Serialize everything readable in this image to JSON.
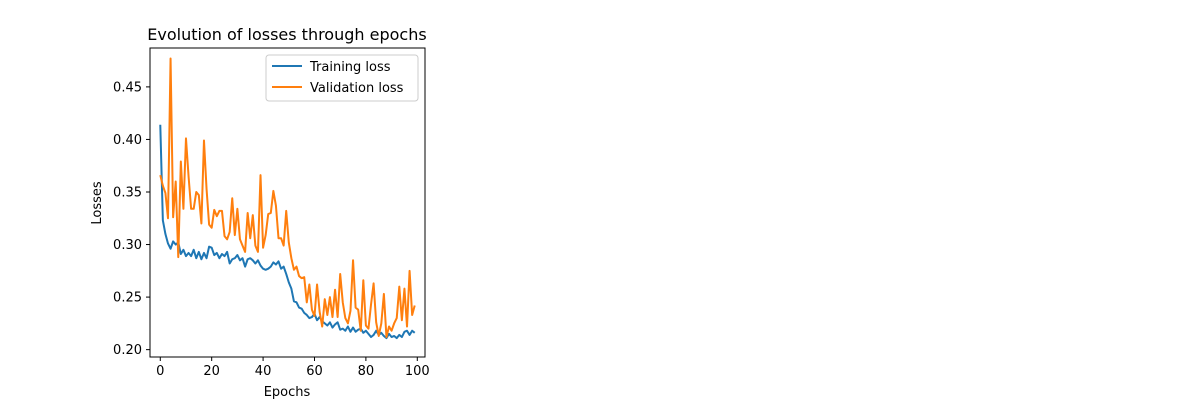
{
  "chart_data": {
    "type": "line",
    "title": "Evolution of losses through epochs",
    "xlabel": "Epochs",
    "ylabel": "Losses",
    "xlim": [
      -4,
      103
    ],
    "ylim": [
      0.193,
      0.487
    ],
    "xticks": [
      0,
      20,
      40,
      60,
      80,
      100
    ],
    "yticks": [
      0.2,
      0.25,
      0.3,
      0.35,
      0.4,
      0.45
    ],
    "xtick_labels": [
      "0",
      "20",
      "40",
      "60",
      "80",
      "100"
    ],
    "ytick_labels": [
      "0.20",
      "0.25",
      "0.30",
      "0.35",
      "0.40",
      "0.45"
    ],
    "grid": false,
    "legend": "top-right",
    "x": [
      0,
      1,
      2,
      3,
      4,
      5,
      6,
      7,
      8,
      9,
      10,
      11,
      12,
      13,
      14,
      15,
      16,
      17,
      18,
      19,
      20,
      21,
      22,
      23,
      24,
      25,
      26,
      27,
      28,
      29,
      30,
      31,
      32,
      33,
      34,
      35,
      36,
      37,
      38,
      39,
      40,
      41,
      42,
      43,
      44,
      45,
      46,
      47,
      48,
      49,
      50,
      51,
      52,
      53,
      54,
      55,
      56,
      57,
      58,
      59,
      60,
      61,
      62,
      63,
      64,
      65,
      66,
      67,
      68,
      69,
      70,
      71,
      72,
      73,
      74,
      75,
      76,
      77,
      78,
      79,
      80,
      81,
      82,
      83,
      84,
      85,
      86,
      87,
      88,
      89,
      90,
      91,
      92,
      93,
      94,
      95,
      96,
      97,
      98,
      99
    ],
    "series": [
      {
        "name": "Training loss",
        "color": "#1f77b4",
        "values": [
          0.414,
          0.323,
          0.31,
          0.301,
          0.296,
          0.303,
          0.3,
          0.302,
          0.291,
          0.295,
          0.289,
          0.292,
          0.289,
          0.295,
          0.287,
          0.293,
          0.286,
          0.292,
          0.287,
          0.298,
          0.297,
          0.29,
          0.292,
          0.287,
          0.291,
          0.289,
          0.293,
          0.282,
          0.286,
          0.287,
          0.29,
          0.285,
          0.287,
          0.279,
          0.286,
          0.287,
          0.285,
          0.282,
          0.285,
          0.28,
          0.277,
          0.276,
          0.277,
          0.279,
          0.283,
          0.281,
          0.284,
          0.277,
          0.279,
          0.272,
          0.264,
          0.258,
          0.246,
          0.245,
          0.24,
          0.239,
          0.235,
          0.233,
          0.23,
          0.231,
          0.234,
          0.228,
          0.231,
          0.227,
          0.225,
          0.223,
          0.226,
          0.221,
          0.224,
          0.226,
          0.219,
          0.22,
          0.218,
          0.222,
          0.217,
          0.221,
          0.217,
          0.219,
          0.22,
          0.216,
          0.218,
          0.215,
          0.212,
          0.214,
          0.218,
          0.214,
          0.216,
          0.213,
          0.211,
          0.215,
          0.212,
          0.213,
          0.211,
          0.214,
          0.212,
          0.217,
          0.218,
          0.214,
          0.218,
          0.216
        ]
      },
      {
        "name": "Validation loss",
        "color": "#ff7f0e",
        "values": [
          0.366,
          0.356,
          0.349,
          0.325,
          0.477,
          0.326,
          0.36,
          0.288,
          0.379,
          0.334,
          0.401,
          0.365,
          0.334,
          0.334,
          0.35,
          0.347,
          0.32,
          0.399,
          0.353,
          0.319,
          0.316,
          0.333,
          0.327,
          0.332,
          0.332,
          0.308,
          0.305,
          0.312,
          0.344,
          0.309,
          0.334,
          0.305,
          0.299,
          0.293,
          0.33,
          0.306,
          0.328,
          0.299,
          0.293,
          0.366,
          0.297,
          0.309,
          0.329,
          0.33,
          0.351,
          0.337,
          0.306,
          0.306,
          0.299,
          0.332,
          0.302,
          0.287,
          0.276,
          0.279,
          0.27,
          0.268,
          0.269,
          0.245,
          0.262,
          0.238,
          0.232,
          0.262,
          0.236,
          0.222,
          0.248,
          0.233,
          0.25,
          0.231,
          0.257,
          0.231,
          0.272,
          0.245,
          0.23,
          0.225,
          0.237,
          0.285,
          0.24,
          0.238,
          0.218,
          0.266,
          0.223,
          0.22,
          0.243,
          0.263,
          0.226,
          0.213,
          0.225,
          0.253,
          0.212,
          0.222,
          0.218,
          0.225,
          0.23,
          0.26,
          0.228,
          0.258,
          0.222,
          0.275,
          0.233,
          0.242
        ]
      }
    ]
  }
}
